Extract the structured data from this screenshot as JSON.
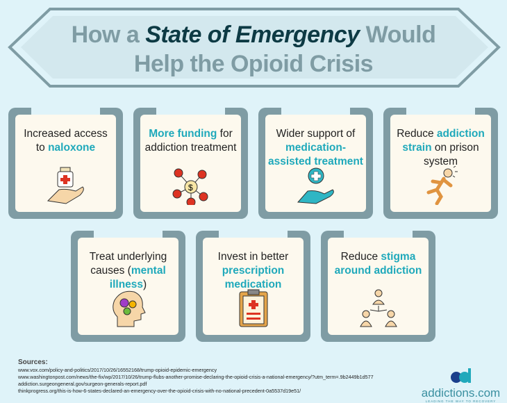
{
  "title": {
    "part1": "How a ",
    "emphasis": "State of Emergency",
    "part2": " Would",
    "line2": "Help the Opioid Crisis"
  },
  "cards": [
    {
      "pre": "Increased access to ",
      "hl": "naloxone",
      "post": "",
      "icon": "hand-medicine-bottle-icon"
    },
    {
      "pre": "",
      "hl": "More funding",
      "post": " for addiction treatment",
      "icon": "money-network-icon"
    },
    {
      "pre": "Wider support of ",
      "hl": "medication-assisted treatment",
      "post": "",
      "icon": "hand-medical-cross-icon"
    },
    {
      "pre": "Reduce ",
      "hl": "addiction strain",
      "post": " on prison system",
      "icon": "running-person-icon"
    },
    {
      "pre": "Treat underlying causes (",
      "hl": "mental illness",
      "post": ")",
      "icon": "head-gears-icon"
    },
    {
      "pre": "Invest in better ",
      "hl": "prescription medication",
      "post": "",
      "icon": "clipboard-prescription-icon"
    },
    {
      "pre": "Reduce ",
      "hl": "stigma around addiction",
      "post": "",
      "icon": "people-network-icon"
    }
  ],
  "sources": {
    "heading": "Sources:",
    "items": [
      "www.vox.com/policy-and-politics/2017/10/26/16552168/trump-opioid-epidemic-emergency",
      "www.washingtonpost.com/news/the-fix/wp/2017/10/26/trump-flubs-another-promise-declaring-the-opioid-crisis-a-national-emergency/?utm_term=.9b2449b1d577",
      "addiction.surgeongeneral.gov/surgeon-generals-report.pdf",
      "thinkprogress.org/this-is-how-6-states-declared-an-emergency-over-the-opioid-crisis-with-no-national-precedent-0a5537d19e51/"
    ]
  },
  "logo": {
    "name": "addictions.com",
    "tagline": "LEADING THE WAY TO RECOVERY"
  },
  "colors": {
    "background": "#dff3f9",
    "frame": "#7f9ca4",
    "accent": "#1fa9bb",
    "title_emphasis": "#0d3a44",
    "card": "#fdf9ee"
  }
}
